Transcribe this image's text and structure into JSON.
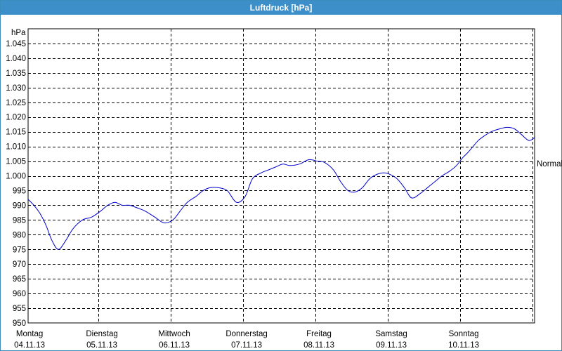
{
  "window": {
    "title": "Luftdruck [hPa]"
  },
  "chart_data": {
    "type": "line",
    "title": "Luftdruck [hPa]",
    "ylabel": "hPa",
    "ylim": [
      950,
      1050
    ],
    "yticks": [
      "1.045",
      "1.040",
      "1.035",
      "1.030",
      "1.025",
      "1.020",
      "1.015",
      "1.010",
      "1.005",
      "1.000",
      "995",
      "990",
      "985",
      "980",
      "975",
      "970",
      "965",
      "960",
      "955",
      "950"
    ],
    "ytick_values": [
      1045,
      1040,
      1035,
      1030,
      1025,
      1020,
      1015,
      1010,
      1005,
      1000,
      995,
      990,
      985,
      980,
      975,
      970,
      965,
      960,
      955,
      950
    ],
    "xlim": [
      0,
      7
    ],
    "x_categories": [
      {
        "day": "Montag",
        "date": "04.11.13"
      },
      {
        "day": "Dienstag",
        "date": "05.11.13"
      },
      {
        "day": "Mittwoch",
        "date": "06.11.13"
      },
      {
        "day": "Donnerstag",
        "date": "07.11.13"
      },
      {
        "day": "Freitag",
        "date": "08.11.13"
      },
      {
        "day": "Samstag",
        "date": "09.11.13"
      },
      {
        "day": "Sonntag",
        "date": "10.11.13"
      }
    ],
    "reference_line": {
      "label": "Normal",
      "value": 1004.2
    },
    "grid": true,
    "series": [
      {
        "color": "#0000cc",
        "x": [
          0.0,
          0.08,
          0.17,
          0.25,
          0.33,
          0.42,
          0.52,
          0.62,
          0.75,
          0.88,
          1.0,
          1.1,
          1.2,
          1.3,
          1.4,
          1.52,
          1.62,
          1.75,
          1.88,
          2.0,
          2.1,
          2.2,
          2.32,
          2.42,
          2.52,
          2.62,
          2.75,
          2.88,
          3.0,
          3.1,
          3.22,
          3.32,
          3.42,
          3.52,
          3.62,
          3.75,
          3.88,
          4.0,
          4.1,
          4.22,
          4.32,
          4.42,
          4.52,
          4.62,
          4.72,
          4.82,
          4.92,
          5.0,
          5.1,
          5.2,
          5.3,
          5.42,
          5.52,
          5.62,
          5.72,
          5.82,
          5.92,
          6.0,
          6.08,
          6.15,
          6.22,
          6.3,
          6.4,
          6.52,
          6.62,
          6.72,
          6.82,
          6.92,
          7.0
        ],
        "y": [
          992,
          990,
          987,
          983,
          978,
          975,
          978,
          982,
          985,
          986,
          988,
          990,
          991,
          990,
          990,
          989,
          988,
          986,
          984,
          985,
          988,
          991,
          993,
          995,
          996,
          996,
          995,
          991,
          993,
          999,
          1001,
          1002,
          1003,
          1004,
          1003.5,
          1004,
          1005.5,
          1005,
          1004.5,
          1002,
          998,
          995,
          994.5,
          996,
          999,
          1000.5,
          1001,
          1000.5,
          999,
          996,
          992.5,
          994,
          996,
          998,
          1000,
          1001.5,
          1003.5,
          1006,
          1008,
          1010,
          1012,
          1013.5,
          1015,
          1016,
          1016.5,
          1016,
          1014,
          1012,
          1013
        ]
      }
    ]
  }
}
